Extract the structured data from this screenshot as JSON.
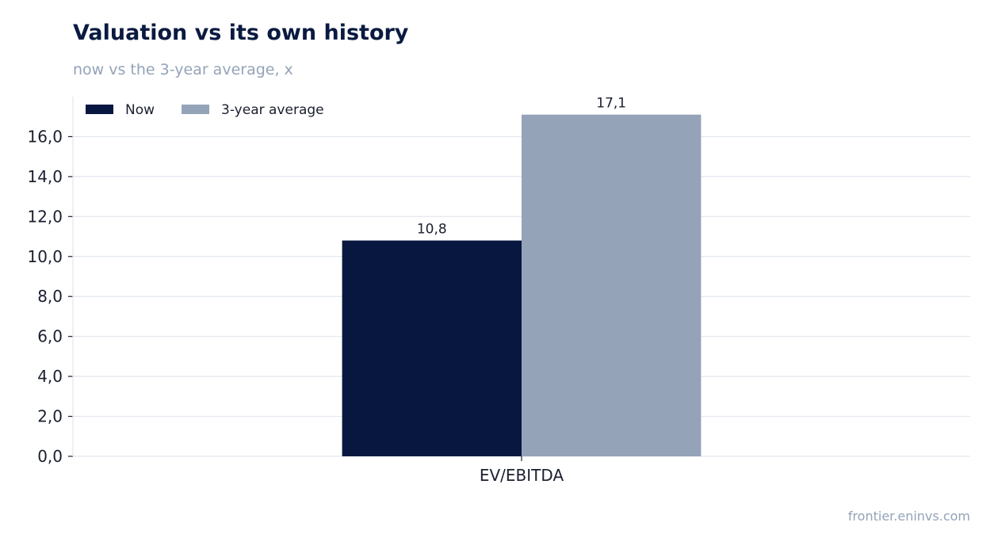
{
  "header": {
    "title": "Valuation vs its own history",
    "subtitle": "now vs the 3-year average, x"
  },
  "footer": {
    "source": "frontier.eninvs.com"
  },
  "chart_data": {
    "type": "bar",
    "categories": [
      "EV/EBITDA"
    ],
    "series": [
      {
        "name": "Now",
        "values": [
          10.8
        ],
        "labels": [
          "10,8"
        ],
        "color": "#071740"
      },
      {
        "name": "3-year average",
        "values": [
          17.1
        ],
        "labels": [
          "17,1"
        ],
        "color": "#94a3b8"
      }
    ],
    "ylim": [
      0,
      18
    ],
    "yticks": [
      0,
      2,
      4,
      6,
      8,
      10,
      12,
      14,
      16
    ],
    "ytick_labels": [
      "0,0",
      "2,0",
      "4,0",
      "6,0",
      "8,0",
      "10,0",
      "12,0",
      "14,0",
      "16,0"
    ],
    "grid": true,
    "legend_position": "top-left",
    "colors": {
      "grid": "#e2e6ee",
      "axis": "#1a1f2e",
      "text": "#1a1f2e"
    }
  }
}
